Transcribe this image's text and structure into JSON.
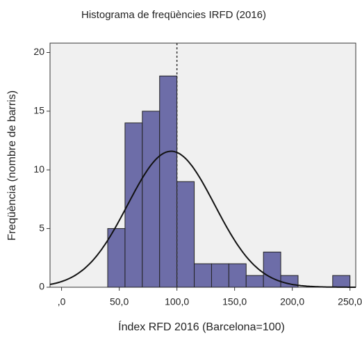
{
  "chart_data": {
    "type": "histogram",
    "title": "Histograma de freqüències IRFD (2016)",
    "x_label": "Índex RFD 2016 (Barcelona=100)",
    "y_label": "Freqüència (nombre de barris)",
    "bins": [
      40,
      55,
      70,
      85,
      100,
      115,
      130,
      145,
      160,
      175,
      190,
      205,
      220,
      235,
      250
    ],
    "values": [
      5,
      14,
      15,
      18,
      9,
      2,
      2,
      2,
      1,
      3,
      1,
      0,
      0,
      1
    ],
    "color": "#6d6da8",
    "xlim": [
      -10,
      255
    ],
    "xticks": [
      {
        "value": 0,
        "label": ",0"
      },
      {
        "value": 50,
        "label": "50,0"
      },
      {
        "value": 100,
        "label": "100,0"
      },
      {
        "value": 150,
        "label": "150,0"
      },
      {
        "value": 200,
        "label": "200,0"
      },
      {
        "value": 250,
        "label": "250,0"
      }
    ],
    "ylim": [
      0,
      20.8
    ],
    "yticks": [
      0,
      5,
      10,
      15,
      20
    ],
    "reference_line": 100,
    "normal_curve": {
      "mean": 95,
      "sd": 37.7
    }
  }
}
